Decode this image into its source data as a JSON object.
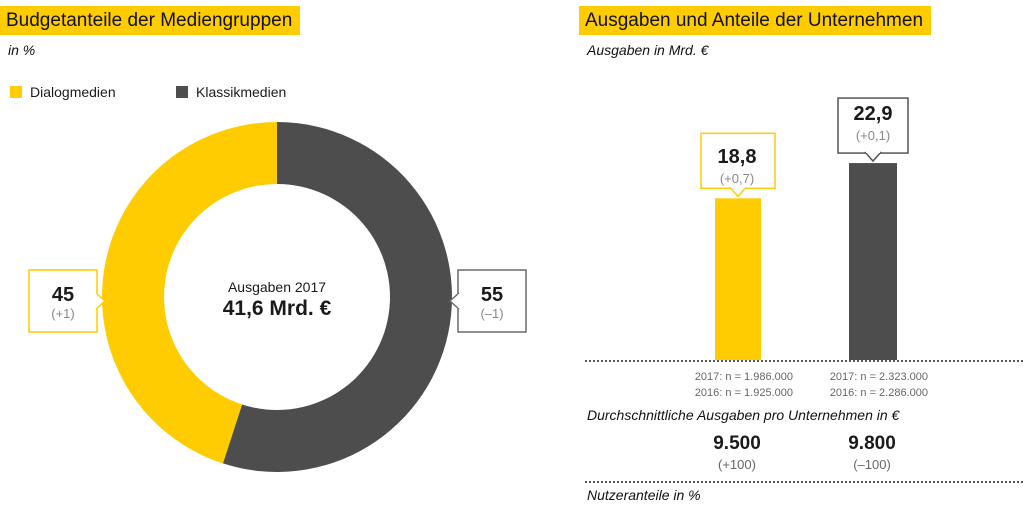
{
  "left_panel": {
    "title": "Budgetanteile der Mediengruppen",
    "unit": "in %",
    "center_label": "Ausgaben 2017",
    "center_value": "41,6 Mrd. €"
  },
  "right_panel": {
    "title": "Ausgaben und Anteile der Unternehmen",
    "unit": "Ausgaben in Mrd. €",
    "samples": [
      {
        "line1": "2017: n = 1.986.000",
        "line2": "2016: n = 1.925.000"
      },
      {
        "line1": "2017: n = 2.323.000",
        "line2": "2016: n = 2.286.000"
      }
    ],
    "avg_title": "Durchschnittliche Ausgaben pro Unternehmen in €",
    "avg": [
      {
        "value": "9.500",
        "change": "(+100)"
      },
      {
        "value": "9.800",
        "change": "(–100)"
      }
    ],
    "footer_title": "Nutzeranteile in %"
  },
  "colors": {
    "dialog": "#fecc00",
    "klassik": "#4d4d4d"
  },
  "chart_data": [
    {
      "type": "pie",
      "variant": "donut",
      "title": "Budgetanteile der Mediengruppen",
      "unit": "in %",
      "legend_position": "top-left",
      "categories": [
        "Dialogmedien",
        "Klassikmedien"
      ],
      "values": [
        45,
        55
      ],
      "value_labels": [
        "45",
        "55"
      ],
      "change_labels": [
        "(+1)",
        "(–1)"
      ],
      "colors": [
        "#fecc00",
        "#4d4d4d"
      ]
    },
    {
      "type": "bar",
      "title": "Ausgaben und Anteile der Unternehmen",
      "ylabel": "Ausgaben in Mrd. €",
      "categories": [
        "Dialogmedien",
        "Klassikmedien"
      ],
      "values": [
        18.8,
        22.9
      ],
      "value_labels": [
        "18,8",
        "22,9"
      ],
      "change_labels": [
        "(+0,7)",
        "(+0,1)"
      ],
      "colors": [
        "#fecc00",
        "#4d4d4d"
      ],
      "grid": false
    }
  ]
}
